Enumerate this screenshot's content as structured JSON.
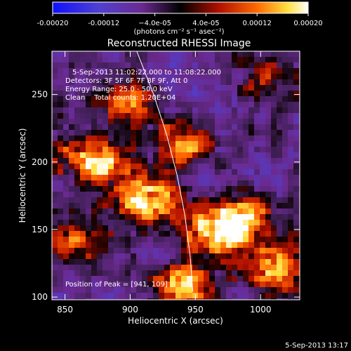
{
  "chart_data": {
    "type": "heatmap",
    "title": "Reconstructed RHESSI Image",
    "xlabel": "Heliocentric X (arcsec)",
    "ylabel": "Heliocentric Y (arcsec)",
    "xlim": [
      840,
      1030
    ],
    "ylim": [
      98,
      282
    ],
    "x_ticks": [
      850,
      900,
      950,
      1000
    ],
    "y_ticks": [
      100,
      150,
      200,
      250
    ],
    "colorbar": {
      "range": [
        -0.0002,
        0.0002
      ],
      "tick_labels": [
        "-0.00020",
        "-0.00012",
        "−4.0e-05",
        "4.0e-05",
        "0.00012",
        "0.00020"
      ],
      "label": "(photons cm⁻² s⁻¹ asec⁻²)",
      "colors": [
        "#1010ff",
        "#6040c0",
        "#7a2a8a",
        "#000000",
        "#b01000",
        "#ff6000",
        "#ffe040",
        "#ffffff"
      ]
    },
    "bright_regions": [
      {
        "x": 940,
        "y": 108,
        "level": 1.0
      },
      {
        "x": 912,
        "y": 172,
        "level": 0.9
      },
      {
        "x": 965,
        "y": 150,
        "level": 0.95
      },
      {
        "x": 875,
        "y": 200,
        "level": 0.8
      },
      {
        "x": 940,
        "y": 215,
        "level": 0.75
      },
      {
        "x": 990,
        "y": 160,
        "level": 0.7
      },
      {
        "x": 900,
        "y": 245,
        "level": 0.6
      },
      {
        "x": 1015,
        "y": 125,
        "level": 0.6
      },
      {
        "x": 860,
        "y": 140,
        "level": 0.5
      },
      {
        "x": 1005,
        "y": 260,
        "level": 0.5
      }
    ],
    "limb_curve": [
      [
        905,
        282
      ],
      [
        918,
        250
      ],
      [
        928,
        220
      ],
      [
        936,
        190
      ],
      [
        942,
        160
      ],
      [
        946,
        130
      ],
      [
        948,
        104
      ]
    ],
    "peak_position": "Position of Peak = [941, 109]"
  },
  "annotations": [
    "5-Sep-2013 11:02:22.000 to 11:08:22.000",
    "Detectors: 3F 5F 6F 7F 8F 9F, Att 0",
    "Energy Range: 25.0 - 50.0 keV",
    "Clean    Total counts: 1.20E+04"
  ],
  "timestamp": "5-Sep-2013 13:17"
}
